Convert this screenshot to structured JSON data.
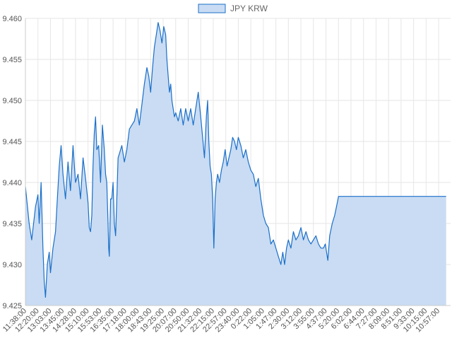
{
  "colors": {
    "line": "#1a6fc9",
    "fill": "#c9dcf3",
    "grid": "#e6e6e6",
    "axis_text": "#555555"
  },
  "chart_data": {
    "type": "area",
    "legend": {
      "label": "JPY KRW",
      "position": "top"
    },
    "grid": true,
    "ylim": [
      9.425,
      9.46
    ],
    "y_ticks": [
      "9.460",
      "9.455",
      "9.450",
      "9.445",
      "9.440",
      "9.435",
      "9.430",
      "9.425"
    ],
    "x_tick_labels": [
      "11:38:00",
      "12:20:00",
      "13:03:00",
      "13:45:00",
      "14:28:00",
      "15:10:00",
      "15:53:00",
      "16:35:00",
      "17:18:00",
      "18:00:00",
      "18:43:00",
      "19:25:00",
      "20:07:00",
      "20:50:00",
      "21:32:00",
      "22:15:00",
      "22:57:00",
      "23:40:00",
      "0:22:00",
      "1:05:00",
      "1:47:00",
      "2:30:00",
      "3:12:00",
      "3:55:00",
      "4:37:00",
      "5:20:00",
      "6:02:00",
      "6:44:00",
      "7:27:00",
      "8:09:00",
      "8:51:00",
      "9:33:00",
      "10:15:00",
      "10:57:00"
    ],
    "series": [
      {
        "name": "JPY KRW",
        "points": [
          [
            0,
            9.4395
          ],
          [
            0.3,
            9.435
          ],
          [
            0.5,
            9.433
          ],
          [
            0.8,
            9.437
          ],
          [
            1.0,
            9.4385
          ],
          [
            1.1,
            9.435
          ],
          [
            1.25,
            9.44
          ],
          [
            1.4,
            9.432
          ],
          [
            1.5,
            9.428
          ],
          [
            1.6,
            9.426
          ],
          [
            1.75,
            9.43
          ],
          [
            1.9,
            9.4315
          ],
          [
            2.0,
            9.429
          ],
          [
            2.2,
            9.432
          ],
          [
            2.4,
            9.434
          ],
          [
            2.55,
            9.438
          ],
          [
            2.7,
            9.442
          ],
          [
            2.85,
            9.4445
          ],
          [
            3.0,
            9.441
          ],
          [
            3.2,
            9.438
          ],
          [
            3.4,
            9.4425
          ],
          [
            3.6,
            9.439
          ],
          [
            3.8,
            9.4445
          ],
          [
            4.0,
            9.44
          ],
          [
            4.2,
            9.441
          ],
          [
            4.4,
            9.438
          ],
          [
            4.6,
            9.443
          ],
          [
            4.8,
            9.4405
          ],
          [
            5.0,
            9.4375
          ],
          [
            5.1,
            9.4345
          ],
          [
            5.2,
            9.434
          ],
          [
            5.3,
            9.436
          ],
          [
            5.4,
            9.442
          ],
          [
            5.5,
            9.446
          ],
          [
            5.6,
            9.448
          ],
          [
            5.7,
            9.444
          ],
          [
            5.85,
            9.4445
          ],
          [
            6.0,
            9.44
          ],
          [
            6.15,
            9.447
          ],
          [
            6.3,
            9.444
          ],
          [
            6.4,
            9.441
          ],
          [
            6.5,
            9.44
          ],
          [
            6.6,
            9.435
          ],
          [
            6.65,
            9.432
          ],
          [
            6.7,
            9.431
          ],
          [
            6.8,
            9.438
          ],
          [
            6.9,
            9.438
          ],
          [
            7.0,
            9.44
          ],
          [
            7.1,
            9.435
          ],
          [
            7.2,
            9.4335
          ],
          [
            7.3,
            9.438
          ],
          [
            7.4,
            9.443
          ],
          [
            7.5,
            9.4435
          ],
          [
            7.7,
            9.4445
          ],
          [
            7.9,
            9.4425
          ],
          [
            8.1,
            9.444
          ],
          [
            8.3,
            9.4465
          ],
          [
            8.5,
            9.447
          ],
          [
            8.7,
            9.4475
          ],
          [
            8.9,
            9.449
          ],
          [
            9.1,
            9.447
          ],
          [
            9.3,
            9.4495
          ],
          [
            9.5,
            9.452
          ],
          [
            9.7,
            9.454
          ],
          [
            9.85,
            9.453
          ],
          [
            10.0,
            9.451
          ],
          [
            10.15,
            9.454
          ],
          [
            10.3,
            9.4565
          ],
          [
            10.45,
            9.458
          ],
          [
            10.6,
            9.4595
          ],
          [
            10.75,
            9.4585
          ],
          [
            10.9,
            9.457
          ],
          [
            11.05,
            9.459
          ],
          [
            11.2,
            9.458
          ],
          [
            11.3,
            9.455
          ],
          [
            11.4,
            9.453
          ],
          [
            11.5,
            9.451
          ],
          [
            11.6,
            9.452
          ],
          [
            11.7,
            9.45
          ],
          [
            11.8,
            9.449
          ],
          [
            11.9,
            9.448
          ],
          [
            12.0,
            9.4485
          ],
          [
            12.2,
            9.4475
          ],
          [
            12.4,
            9.449
          ],
          [
            12.6,
            9.447
          ],
          [
            12.8,
            9.449
          ],
          [
            13.0,
            9.4475
          ],
          [
            13.2,
            9.449
          ],
          [
            13.4,
            9.447
          ],
          [
            13.6,
            9.449
          ],
          [
            13.8,
            9.451
          ],
          [
            14.0,
            9.448
          ],
          [
            14.15,
            9.4455
          ],
          [
            14.3,
            9.443
          ],
          [
            14.45,
            9.448
          ],
          [
            14.55,
            9.45
          ],
          [
            14.65,
            9.445
          ],
          [
            14.75,
            9.442
          ],
          [
            14.85,
            9.441
          ],
          [
            14.95,
            9.438
          ],
          [
            15.05,
            9.432
          ],
          [
            15.15,
            9.438
          ],
          [
            15.25,
            9.44
          ],
          [
            15.35,
            9.441
          ],
          [
            15.5,
            9.44
          ],
          [
            15.65,
            9.4415
          ],
          [
            15.8,
            9.4425
          ],
          [
            15.95,
            9.444
          ],
          [
            16.1,
            9.442
          ],
          [
            16.25,
            9.443
          ],
          [
            16.4,
            9.444
          ],
          [
            16.55,
            9.4455
          ],
          [
            16.7,
            9.445
          ],
          [
            16.85,
            9.444
          ],
          [
            17.0,
            9.4455
          ],
          [
            17.2,
            9.4445
          ],
          [
            17.4,
            9.443
          ],
          [
            17.6,
            9.444
          ],
          [
            17.8,
            9.4425
          ],
          [
            18.0,
            9.4415
          ],
          [
            18.2,
            9.441
          ],
          [
            18.4,
            9.4395
          ],
          [
            18.6,
            9.4405
          ],
          [
            18.8,
            9.438
          ],
          [
            19.0,
            9.436
          ],
          [
            19.2,
            9.435
          ],
          [
            19.4,
            9.4345
          ],
          [
            19.6,
            9.4325
          ],
          [
            19.8,
            9.433
          ],
          [
            20.0,
            9.432
          ],
          [
            20.2,
            9.431
          ],
          [
            20.4,
            9.43
          ],
          [
            20.55,
            9.4315
          ],
          [
            20.7,
            9.43
          ],
          [
            20.85,
            9.432
          ],
          [
            21.0,
            9.433
          ],
          [
            21.2,
            9.432
          ],
          [
            21.4,
            9.434
          ],
          [
            21.6,
            9.433
          ],
          [
            21.8,
            9.4335
          ],
          [
            22.0,
            9.4345
          ],
          [
            22.2,
            9.433
          ],
          [
            22.4,
            9.434
          ],
          [
            22.6,
            9.433
          ],
          [
            22.8,
            9.4325
          ],
          [
            23.0,
            9.433
          ],
          [
            23.2,
            9.4335
          ],
          [
            23.4,
            9.4325
          ],
          [
            23.6,
            9.432
          ],
          [
            23.8,
            9.432
          ],
          [
            23.95,
            9.4325
          ],
          [
            24.05,
            9.4315
          ],
          [
            24.15,
            9.4305
          ],
          [
            24.3,
            9.4335
          ],
          [
            24.5,
            9.435
          ],
          [
            24.7,
            9.436
          ],
          [
            24.9,
            9.4375
          ],
          [
            25.0,
            9.4383
          ],
          [
            33.6,
            9.4383
          ]
        ]
      }
    ]
  }
}
